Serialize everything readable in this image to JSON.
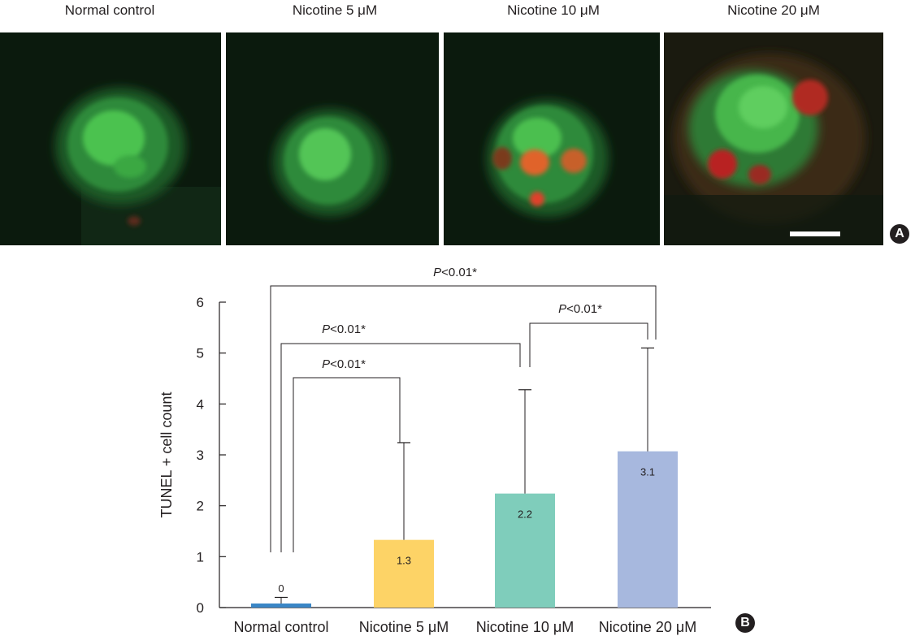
{
  "panel_a": {
    "badge": "A",
    "images": [
      {
        "label": "Normal control",
        "cell": "green-only"
      },
      {
        "label": "Nicotine 5 μM",
        "cell": "green-only"
      },
      {
        "label": "Nicotine 10 μM",
        "cell": "green-with-red"
      },
      {
        "label": "Nicotine 20 μM",
        "cell": "green-with-red"
      }
    ]
  },
  "panel_b": {
    "badge": "B"
  },
  "chart_data": {
    "type": "bar",
    "categories": [
      "Normal control",
      "Nicotine 5 μM",
      "Nicotine 10 μM",
      "Nicotine 20 μM"
    ],
    "values": [
      0.08,
      1.33,
      2.24,
      3.07
    ],
    "value_labels": [
      "0",
      "1.3",
      "2.2",
      "3.1"
    ],
    "error_upper": [
      0.2,
      3.24,
      4.28,
      5.1
    ],
    "colors": [
      "#3a86c6",
      "#fdd366",
      "#7fcdbb",
      "#a7b8de"
    ],
    "ylabel": "TUNEL + cell count",
    "ylim": [
      0,
      6
    ],
    "yticks": [
      "0",
      "1",
      "2",
      "3",
      "4",
      "5",
      "6"
    ],
    "significance": [
      {
        "from": 0,
        "to": 3,
        "label_italic": "P",
        "label_rest": "<0.01*"
      },
      {
        "from": 0,
        "to": 2,
        "label_italic": "P",
        "label_rest": "<0.01*"
      },
      {
        "from": 0,
        "to": 1,
        "label_italic": "P",
        "label_rest": "<0.01*"
      },
      {
        "from": 2,
        "to": 3,
        "label_italic": "P",
        "label_rest": "<0.01*"
      }
    ]
  }
}
